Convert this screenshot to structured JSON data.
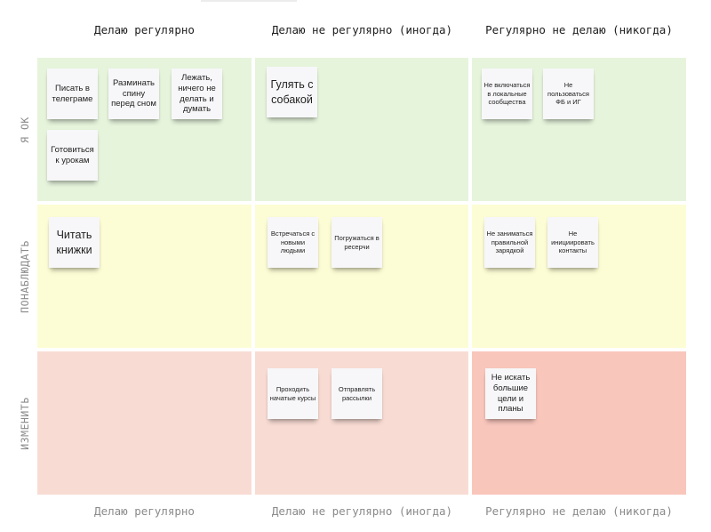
{
  "colors": {
    "green_cell": "#e6f4dc",
    "yellow_cell": "#fdfdd5",
    "red_cell": "#f8dcd4",
    "red_cell_strong": "#f9c6bc",
    "note": "#f7f7f9"
  },
  "columns_top": [
    "Делаю регулярно",
    "Делаю не регулярно (иногда)",
    "Регулярно не делаю (никогда)"
  ],
  "columns_bottom": [
    "Делаю регулярно",
    "Делаю не регулярно (иногда)",
    "Регулярно не делаю (никогда)"
  ],
  "rows": [
    "Я ОК",
    "ПОНАБЛЮДАТЬ",
    "ИЗМЕНИТЬ"
  ],
  "notes": {
    "ok_regular": [
      "Писать в телеграме",
      "Разминать спину перед сном",
      "Лежать, ничего не делать и думать",
      "Готовиться к урокам"
    ],
    "ok_sometimes": [
      "Гулять с собакой"
    ],
    "ok_never": [
      "Не включаться в локальные сообщества",
      "Не пользоваться ФБ и ИГ"
    ],
    "watch_regular": [
      "Читать книжки"
    ],
    "watch_sometimes": [
      "Встречаться с новыми людьми",
      "Погружаться в ресерчи"
    ],
    "watch_never": [
      "Не заниматься правильной зарядкой",
      "Не инициировать контакты"
    ],
    "change_regular": [],
    "change_sometimes": [
      "Проходить начатые курсы",
      "Отправлять рассылки"
    ],
    "change_never": [
      "Не искать большие цели и планы"
    ]
  }
}
